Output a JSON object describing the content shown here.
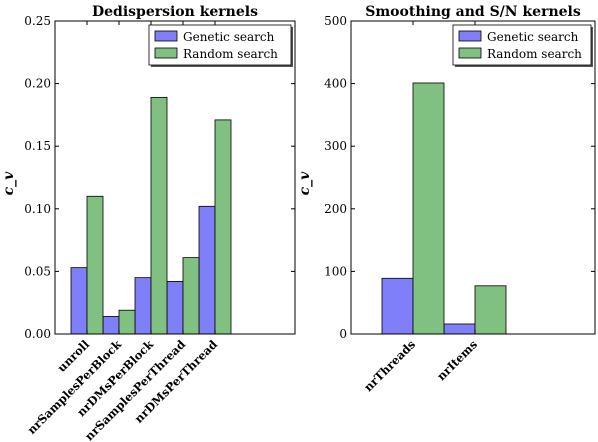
{
  "chart_data": [
    {
      "type": "bar",
      "title": "Dedispersion kernels",
      "xlabel": "",
      "ylabel": "c_v",
      "ylim": [
        0,
        0.25
      ],
      "yticks": [
        "0.00",
        "0.05",
        "0.10",
        "0.15",
        "0.20",
        "0.25"
      ],
      "categories": [
        "unroll",
        "nrSamplesPerBlock",
        "nrDMsPerBlock",
        "nrSamplesPerThread",
        "nrDMsPerThread"
      ],
      "series": [
        {
          "name": "Genetic search",
          "color": "#7f7ffa",
          "values": [
            0.053,
            0.014,
            0.045,
            0.042,
            0.102
          ]
        },
        {
          "name": "Random search",
          "color": "#80c080",
          "values": [
            0.11,
            0.019,
            0.189,
            0.061,
            0.171
          ]
        }
      ],
      "legend_position": "top-right",
      "grid": false
    },
    {
      "type": "bar",
      "title": "Smoothing and S/N kernels",
      "xlabel": "",
      "ylabel": "c_v",
      "ylim": [
        0,
        500
      ],
      "yticks": [
        "0",
        "100",
        "200",
        "300",
        "400",
        "500"
      ],
      "categories": [
        "nrThreads",
        "nrItems"
      ],
      "series": [
        {
          "name": "Genetic search",
          "color": "#7f7ffa",
          "values": [
            89,
            16
          ]
        },
        {
          "name": "Random search",
          "color": "#80c080",
          "values": [
            401,
            77
          ]
        }
      ],
      "legend_position": "top-right",
      "grid": false
    }
  ]
}
